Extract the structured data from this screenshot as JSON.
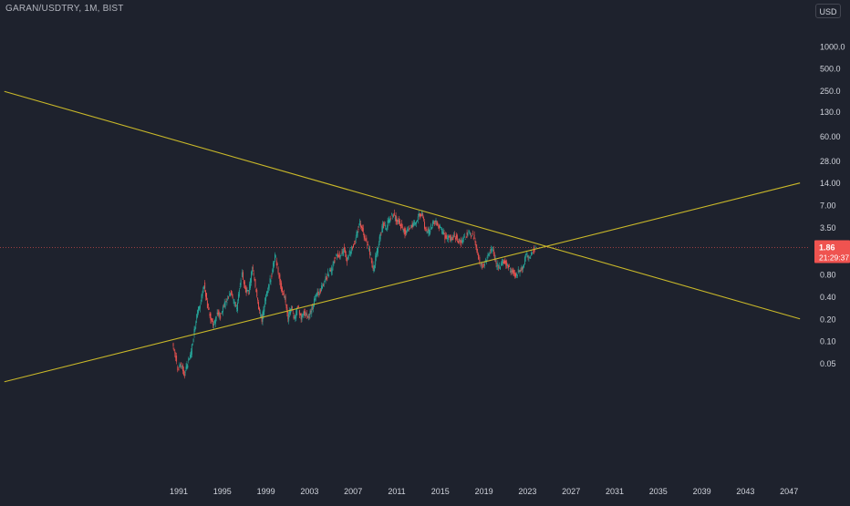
{
  "symbol": "GARAN/USDTRY, 1M, BIST",
  "currency": "USD",
  "price_label": "1.86",
  "countdown_label": "21:29:37",
  "colors": {
    "background": "#1e222d",
    "axis_text": "#d1d4dc",
    "up": "#26a69a",
    "down": "#ef5350",
    "trendline": "#c9b829",
    "price_line": "#ef5350"
  },
  "chart_data": {
    "type": "candlestick",
    "title": "",
    "xlabel": "",
    "ylabel": "",
    "y_scale": "log",
    "y_ticks": [
      "1000.0",
      "500.0",
      "250.0",
      "130.0",
      "60.00",
      "28.00",
      "14.00",
      "7.00",
      "3.50",
      "1.86",
      "0.80",
      "0.40",
      "0.20",
      "0.10",
      "0.05"
    ],
    "x_ticks": [
      "1991",
      "1995",
      "1999",
      "2003",
      "2007",
      "2011",
      "2015",
      "2019",
      "2023",
      "2027",
      "2031",
      "2035",
      "2039",
      "2043",
      "2047"
    ],
    "last_price": 1.86,
    "series": [
      {
        "values": [
          [
            1990.5,
            0.09
          ],
          [
            1990.8,
            0.06
          ],
          [
            1991.0,
            0.04
          ],
          [
            1991.3,
            0.05
          ],
          [
            1991.6,
            0.035
          ],
          [
            1991.9,
            0.05
          ],
          [
            1992.2,
            0.07
          ],
          [
            1992.5,
            0.14
          ],
          [
            1992.8,
            0.25
          ],
          [
            1993.1,
            0.35
          ],
          [
            1993.4,
            0.6
          ],
          [
            1993.7,
            0.3
          ],
          [
            1994.0,
            0.2
          ],
          [
            1994.3,
            0.17
          ],
          [
            1994.6,
            0.25
          ],
          [
            1994.9,
            0.22
          ],
          [
            1995.2,
            0.3
          ],
          [
            1995.5,
            0.35
          ],
          [
            1995.8,
            0.45
          ],
          [
            1996.1,
            0.35
          ],
          [
            1996.4,
            0.28
          ],
          [
            1996.7,
            0.6
          ],
          [
            1996.9,
            0.8
          ],
          [
            1997.2,
            0.5
          ],
          [
            1997.5,
            0.45
          ],
          [
            1997.8,
            1.0
          ],
          [
            1998.1,
            0.55
          ],
          [
            1998.4,
            0.28
          ],
          [
            1998.7,
            0.2
          ],
          [
            1999.0,
            0.35
          ],
          [
            1999.3,
            0.55
          ],
          [
            1999.6,
            0.8
          ],
          [
            1999.9,
            1.5
          ],
          [
            2000.2,
            0.85
          ],
          [
            2000.5,
            0.5
          ],
          [
            2000.8,
            0.4
          ],
          [
            2001.1,
            0.2
          ],
          [
            2001.4,
            0.3
          ],
          [
            2001.7,
            0.2
          ],
          [
            2002.0,
            0.3
          ],
          [
            2002.3,
            0.2
          ],
          [
            2002.6,
            0.25
          ],
          [
            2002.9,
            0.2
          ],
          [
            2003.2,
            0.25
          ],
          [
            2003.5,
            0.35
          ],
          [
            2003.8,
            0.45
          ],
          [
            2004.1,
            0.5
          ],
          [
            2004.4,
            0.6
          ],
          [
            2004.7,
            0.8
          ],
          [
            2005.0,
            0.9
          ],
          [
            2005.3,
            1.2
          ],
          [
            2005.6,
            1.5
          ],
          [
            2005.9,
            1.4
          ],
          [
            2006.2,
            1.8
          ],
          [
            2006.5,
            1.2
          ],
          [
            2006.8,
            1.6
          ],
          [
            2007.1,
            2.0
          ],
          [
            2007.4,
            2.8
          ],
          [
            2007.7,
            4.0
          ],
          [
            2008.0,
            3.0
          ],
          [
            2008.3,
            2.2
          ],
          [
            2008.6,
            1.6
          ],
          [
            2008.9,
            0.9
          ],
          [
            2009.2,
            1.5
          ],
          [
            2009.5,
            2.5
          ],
          [
            2009.8,
            3.8
          ],
          [
            2010.1,
            3.5
          ],
          [
            2010.4,
            4.5
          ],
          [
            2010.7,
            5.5
          ],
          [
            2011.0,
            4.5
          ],
          [
            2011.3,
            4.2
          ],
          [
            2011.6,
            3.2
          ],
          [
            2011.9,
            3.0
          ],
          [
            2012.2,
            3.5
          ],
          [
            2012.5,
            3.8
          ],
          [
            2012.8,
            4.2
          ],
          [
            2013.1,
            5.0
          ],
          [
            2013.4,
            5.6
          ],
          [
            2013.7,
            3.2
          ],
          [
            2014.0,
            3.0
          ],
          [
            2014.3,
            3.8
          ],
          [
            2014.6,
            4.2
          ],
          [
            2014.9,
            3.6
          ],
          [
            2015.2,
            3.2
          ],
          [
            2015.5,
            2.6
          ],
          [
            2015.8,
            2.5
          ],
          [
            2016.1,
            2.5
          ],
          [
            2016.4,
            2.7
          ],
          [
            2016.7,
            2.3
          ],
          [
            2017.0,
            2.2
          ],
          [
            2017.3,
            2.6
          ],
          [
            2017.6,
            2.9
          ],
          [
            2017.9,
            2.8
          ],
          [
            2018.2,
            2.5
          ],
          [
            2018.5,
            1.6
          ],
          [
            2018.7,
            1.1
          ],
          [
            2019.0,
            1.1
          ],
          [
            2019.3,
            1.3
          ],
          [
            2019.6,
            1.6
          ],
          [
            2019.9,
            1.8
          ],
          [
            2020.2,
            1.1
          ],
          [
            2020.5,
            1.0
          ],
          [
            2020.8,
            1.2
          ],
          [
            2021.1,
            1.1
          ],
          [
            2021.4,
            0.95
          ],
          [
            2021.7,
            0.85
          ],
          [
            2022.0,
            0.8
          ],
          [
            2022.3,
            0.9
          ],
          [
            2022.6,
            0.95
          ],
          [
            2022.9,
            1.5
          ],
          [
            2023.2,
            1.3
          ],
          [
            2023.5,
            1.7
          ],
          [
            2023.8,
            1.86
          ]
        ]
      }
    ],
    "trendlines": [
      {
        "from": [
          1975.0,
          0.028
        ],
        "to": [
          2048.0,
          14.0
        ]
      },
      {
        "from": [
          1975.0,
          245.0
        ],
        "to": [
          2048.0,
          0.2
        ]
      }
    ]
  }
}
